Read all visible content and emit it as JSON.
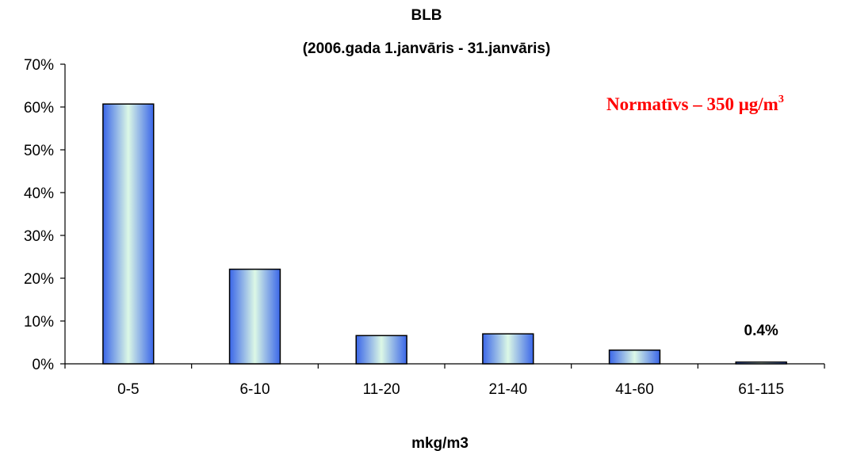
{
  "chart_data": {
    "type": "bar",
    "title_line1": "BLB",
    "title_line2": "(2006.gada 1.janvāris - 31.janvāris)",
    "xlabel": "mkg/m3",
    "ylabel": "",
    "categories": [
      "0-5",
      "6-10",
      "11-20",
      "21-40",
      "41-60",
      "61-115"
    ],
    "values": [
      60.7,
      22.1,
      6.6,
      7.0,
      3.2,
      0.4
    ],
    "ylim": [
      0,
      70
    ],
    "yticks": [
      0,
      10,
      20,
      30,
      40,
      50,
      60,
      70
    ],
    "ytick_labels": [
      "0%",
      "10%",
      "20%",
      "30%",
      "40%",
      "50%",
      "60%",
      "70%"
    ],
    "grid": false,
    "legend": "none",
    "data_labels": [
      {
        "category": "61-115",
        "text": "0.4%"
      }
    ],
    "annotation": {
      "prefix": "Normatīvs – 350 μg/m",
      "superscript": "3",
      "color": "#ff0000"
    },
    "bar_colors": {
      "edge": "#3a66e8",
      "center": "#dcf8e6",
      "outline": "#000000"
    }
  }
}
